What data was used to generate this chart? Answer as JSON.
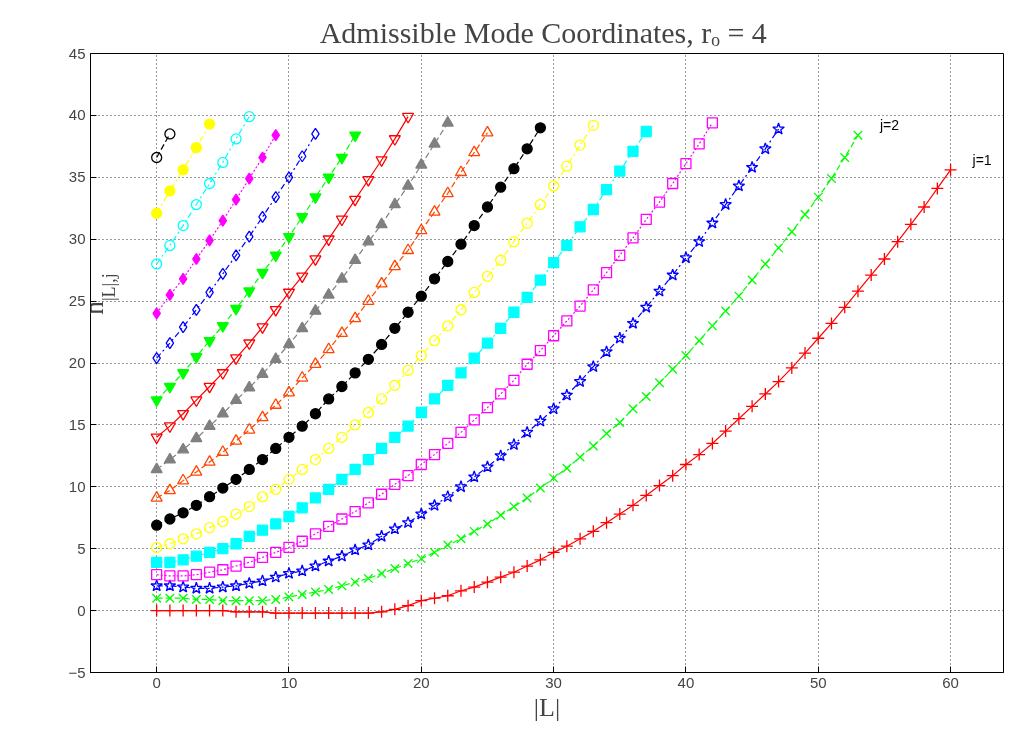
{
  "chart_data": {
    "type": "line",
    "title": "Admissible Mode Coordinates,  rₒ = 4",
    "xlabel": "|L|",
    "ylabel": "n$_{|L|,j}$",
    "xlim": [
      -5,
      64
    ],
    "xticks": [
      0,
      10,
      20,
      30,
      40,
      50,
      60
    ],
    "ylim": [
      -5,
      45
    ],
    "yticks": [
      -5,
      0,
      5,
      10,
      15,
      20,
      25,
      30,
      35,
      40,
      45
    ],
    "grid": true,
    "series": [
      {
        "name": "j=1",
        "color": "#ff0000",
        "marker": "cross",
        "line_style": "solid",
        "x": [
          0,
          1,
          2,
          3,
          4,
          5,
          6,
          7,
          8,
          9,
          10,
          11,
          12,
          13,
          14,
          15,
          16,
          17,
          18,
          19,
          20,
          21,
          22,
          23,
          24,
          25,
          26,
          27,
          28,
          29,
          30,
          31,
          32,
          33,
          34,
          35,
          36,
          37,
          38,
          39,
          40,
          41,
          42,
          43,
          44,
          45,
          46,
          47,
          48,
          49,
          50,
          51,
          52,
          53,
          54,
          55,
          56,
          57,
          58,
          59,
          60
        ],
        "values": [
          0,
          0,
          0,
          0,
          0,
          0,
          -0.1,
          -0.1,
          -0.1,
          -0.2,
          -0.2,
          -0.2,
          -0.2,
          -0.2,
          -0.2,
          -0.2,
          -0.2,
          -0.1,
          0.1,
          0.4,
          0.8,
          1.0,
          1.2,
          1.6,
          1.9,
          2.3,
          2.7,
          3.1,
          3.6,
          4.1,
          4.7,
          5.2,
          5.8,
          6.4,
          7.1,
          7.8,
          8.5,
          9.3,
          10.1,
          10.9,
          11.8,
          12.6,
          13.5,
          14.5,
          15.5,
          16.5,
          17.5,
          18.5,
          19.6,
          20.8,
          22.0,
          23.2,
          24.5,
          25.8,
          27.1,
          28.4,
          29.8,
          31.2,
          32.6,
          34.1,
          35.6
        ]
      },
      {
        "name": "j=2",
        "color": "#00ff00",
        "marker": "x",
        "line_style": "dashed",
        "x": [
          0,
          1,
          2,
          3,
          4,
          5,
          6,
          7,
          8,
          9,
          10,
          11,
          12,
          13,
          14,
          15,
          16,
          17,
          18,
          19,
          20,
          21,
          22,
          23,
          24,
          25,
          26,
          27,
          28,
          29,
          30,
          31,
          32,
          33,
          34,
          35,
          36,
          37,
          38,
          39,
          40,
          41,
          42,
          43,
          44,
          45,
          46,
          47,
          48,
          49,
          50,
          51,
          52,
          53
        ],
        "values": [
          1.0,
          1.0,
          1.0,
          0.9,
          0.9,
          0.8,
          0.8,
          0.8,
          0.8,
          0.9,
          1.1,
          1.3,
          1.5,
          1.7,
          2.0,
          2.3,
          2.6,
          3.0,
          3.4,
          3.8,
          4.2,
          4.7,
          5.3,
          5.8,
          6.4,
          7.0,
          7.7,
          8.4,
          9.1,
          9.9,
          10.7,
          11.5,
          12.4,
          13.3,
          14.3,
          15.2,
          16.3,
          17.3,
          18.4,
          19.5,
          20.6,
          21.8,
          23.0,
          24.2,
          25.4,
          26.7,
          28.0,
          29.3,
          30.6,
          32.0,
          33.4,
          34.9,
          36.6,
          38.4
        ]
      },
      {
        "color": "#0000ff",
        "marker": "star",
        "line_style": "dashdot",
        "x": [
          0,
          1,
          2,
          3,
          4,
          5,
          6,
          7,
          8,
          9,
          10,
          11,
          12,
          13,
          14,
          15,
          16,
          17,
          18,
          19,
          20,
          21,
          22,
          23,
          24,
          25,
          26,
          27,
          28,
          29,
          30,
          31,
          32,
          33,
          34,
          35,
          36,
          37,
          38,
          39,
          40,
          41,
          42,
          43,
          44,
          45,
          46,
          47
        ],
        "values": [
          2.0,
          2.0,
          1.9,
          1.8,
          1.8,
          1.9,
          2.0,
          2.2,
          2.4,
          2.7,
          3.0,
          3.2,
          3.6,
          4.0,
          4.4,
          4.9,
          5.3,
          6.0,
          6.6,
          7.1,
          7.8,
          8.5,
          9.2,
          10.0,
          10.8,
          11.6,
          12.5,
          13.4,
          14.4,
          15.3,
          16.3,
          17.4,
          18.5,
          19.7,
          20.9,
          22.0,
          23.2,
          24.5,
          25.8,
          27.1,
          28.5,
          29.8,
          31.3,
          32.8,
          34.3,
          35.8,
          37.3,
          38.9
        ]
      },
      {
        "color": "#ff00ff",
        "marker": "square-open",
        "line_style": "dotted",
        "x": [
          0,
          1,
          2,
          3,
          4,
          5,
          6,
          7,
          8,
          9,
          10,
          11,
          12,
          13,
          14,
          15,
          16,
          17,
          18,
          19,
          20,
          21,
          22,
          23,
          24,
          25,
          26,
          27,
          28,
          29,
          30,
          31,
          32,
          33,
          34,
          35,
          36,
          37,
          38,
          39,
          40,
          41,
          42
        ],
        "values": [
          2.9,
          2.8,
          2.8,
          2.9,
          3.1,
          3.3,
          3.6,
          3.9,
          4.3,
          4.7,
          5.1,
          5.6,
          6.2,
          6.8,
          7.4,
          8.0,
          8.7,
          9.4,
          10.2,
          10.9,
          11.8,
          12.6,
          13.5,
          14.4,
          15.4,
          16.4,
          17.5,
          18.6,
          19.9,
          21.0,
          22.2,
          23.4,
          24.6,
          25.9,
          27.3,
          28.7,
          30.1,
          31.6,
          33.0,
          34.5,
          36.1,
          37.7,
          39.4
        ]
      },
      {
        "color": "#00ffff",
        "marker": "square",
        "line_style": "dashdot",
        "x": [
          0,
          1,
          2,
          3,
          4,
          5,
          6,
          7,
          8,
          9,
          10,
          11,
          12,
          13,
          14,
          15,
          16,
          17,
          18,
          19,
          20,
          21,
          22,
          23,
          24,
          25,
          26,
          27,
          28,
          29,
          30,
          31,
          32,
          33,
          34,
          35,
          36,
          37
        ],
        "values": [
          3.9,
          3.9,
          4.1,
          4.4,
          4.7,
          5.0,
          5.4,
          6.0,
          6.5,
          7.0,
          7.6,
          8.3,
          9.1,
          9.8,
          10.6,
          11.4,
          12.2,
          13.1,
          14.0,
          14.9,
          16.0,
          17.1,
          18.2,
          19.2,
          20.4,
          21.6,
          22.8,
          24.1,
          25.3,
          26.7,
          28.1,
          29.5,
          31.0,
          32.4,
          34.0,
          35.5,
          37.1,
          38.7
        ]
      },
      {
        "color": "#ffff00",
        "marker": "circle-open",
        "line_style": "dashdot",
        "x": [
          0,
          1,
          2,
          3,
          4,
          5,
          6,
          7,
          8,
          9,
          10,
          11,
          12,
          13,
          14,
          15,
          16,
          17,
          18,
          19,
          20,
          21,
          22,
          23,
          24,
          25,
          26,
          27,
          28,
          29,
          30,
          31,
          32,
          33
        ],
        "values": [
          5.1,
          5.4,
          5.8,
          6.2,
          6.7,
          7.2,
          7.8,
          8.4,
          9.2,
          9.8,
          10.6,
          11.4,
          12.2,
          13.1,
          14.0,
          15.0,
          16.0,
          17.1,
          18.2,
          19.4,
          20.6,
          21.8,
          23.0,
          24.3,
          25.7,
          27.0,
          28.3,
          29.8,
          31.3,
          32.8,
          34.3,
          35.9,
          37.6,
          39.2
        ]
      },
      {
        "color": "#000000",
        "marker": "circle",
        "line_style": "dashed",
        "x": [
          0,
          1,
          2,
          3,
          4,
          5,
          6,
          7,
          8,
          9,
          10,
          11,
          12,
          13,
          14,
          15,
          16,
          17,
          18,
          19,
          20,
          21,
          22,
          23,
          24,
          25,
          26,
          27,
          28,
          29
        ],
        "values": [
          6.9,
          7.4,
          7.9,
          8.5,
          9.2,
          9.9,
          10.6,
          11.4,
          12.2,
          13.1,
          14.0,
          14.9,
          15.9,
          17.1,
          18.1,
          19.2,
          20.3,
          21.5,
          22.8,
          24.1,
          25.4,
          26.8,
          28.2,
          29.6,
          31.1,
          32.6,
          34.2,
          35.7,
          37.3,
          39.0
        ]
      },
      {
        "color": "#ff4500",
        "marker": "triangle-open",
        "line_style": "dashed",
        "x": [
          0,
          1,
          2,
          3,
          4,
          5,
          6,
          7,
          8,
          9,
          10,
          11,
          12,
          13,
          14,
          15,
          16,
          17,
          18,
          19,
          20,
          21,
          22,
          23,
          24,
          25
        ],
        "values": [
          9.1,
          9.7,
          10.5,
          11.2,
          12.0,
          12.8,
          13.7,
          14.6,
          15.6,
          16.6,
          17.6,
          18.8,
          19.9,
          21.1,
          22.4,
          23.6,
          25.0,
          26.4,
          27.8,
          29.1,
          30.7,
          32.2,
          33.7,
          35.4,
          37.0,
          38.6
        ]
      },
      {
        "color": "#808080",
        "marker": "triangle",
        "line_style": "dashed",
        "x": [
          0,
          1,
          2,
          3,
          4,
          5,
          6,
          7,
          8,
          9,
          10,
          11,
          12,
          13,
          14,
          15,
          16,
          17,
          18,
          19,
          20,
          21,
          22
        ],
        "values": [
          11.4,
          12.2,
          13.0,
          13.9,
          14.9,
          15.9,
          17.0,
          18.0,
          19.1,
          20.3,
          21.5,
          22.8,
          24.2,
          25.5,
          26.8,
          28.3,
          29.8,
          31.2,
          32.8,
          34.3,
          36.0,
          37.7,
          39.4
        ]
      },
      {
        "color": "#ff0000",
        "marker": "triangle-down-open",
        "line_style": "solid",
        "x": [
          0,
          1,
          2,
          3,
          4,
          5,
          6,
          7,
          8,
          9,
          10,
          11,
          12,
          13,
          14,
          15,
          16,
          17,
          18,
          19
        ],
        "values": [
          14.0,
          14.9,
          15.9,
          17.0,
          18.1,
          19.2,
          20.4,
          21.6,
          22.9,
          24.3,
          25.7,
          27.0,
          28.4,
          30.0,
          31.6,
          33.2,
          34.8,
          36.4,
          38.1,
          39.9
        ]
      },
      {
        "color": "#00ff00",
        "marker": "triangle-down",
        "line_style": "dashed",
        "x": [
          0,
          1,
          2,
          3,
          4,
          5,
          6,
          7,
          8,
          9,
          10,
          11,
          12,
          13,
          14,
          15
        ],
        "values": [
          17.0,
          18.1,
          19.2,
          20.5,
          21.8,
          23.0,
          24.4,
          25.8,
          27.3,
          28.7,
          30.2,
          31.8,
          33.4,
          35.0,
          36.6,
          38.4
        ]
      },
      {
        "color": "#0000ff",
        "marker": "diamond-open",
        "line_style": "dashdot",
        "x": [
          0,
          1,
          2,
          3,
          4,
          5,
          6,
          7,
          8,
          9,
          10,
          11,
          12
        ],
        "values": [
          20.4,
          21.6,
          22.9,
          24.3,
          25.7,
          27.2,
          28.7,
          30.2,
          31.8,
          33.4,
          35.0,
          36.7,
          38.5
        ]
      },
      {
        "color": "#ff00ff",
        "marker": "diamond",
        "line_style": "dotted",
        "x": [
          0,
          1,
          2,
          3,
          4,
          5,
          6,
          7,
          8,
          9
        ],
        "values": [
          24.0,
          25.5,
          26.8,
          28.4,
          29.9,
          31.5,
          33.2,
          34.9,
          36.6,
          38.4
        ]
      },
      {
        "color": "#00ffff",
        "marker": "circle-open",
        "line_style": "dashdot",
        "x": [
          0,
          1,
          2,
          3,
          4,
          5,
          6,
          7
        ],
        "values": [
          28.0,
          29.5,
          31.1,
          32.8,
          34.5,
          36.2,
          38.1,
          39.9
        ]
      },
      {
        "color": "#ffff00",
        "marker": "circle",
        "line_style": "dashdot",
        "x": [
          0,
          1,
          2,
          3,
          4
        ],
        "values": [
          32.1,
          33.9,
          35.6,
          37.4,
          39.3
        ]
      },
      {
        "color": "#000000",
        "marker": "circle-open",
        "line_style": "dashed",
        "x": [
          0,
          1
        ],
        "values": [
          36.6,
          38.5
        ]
      }
    ]
  }
}
